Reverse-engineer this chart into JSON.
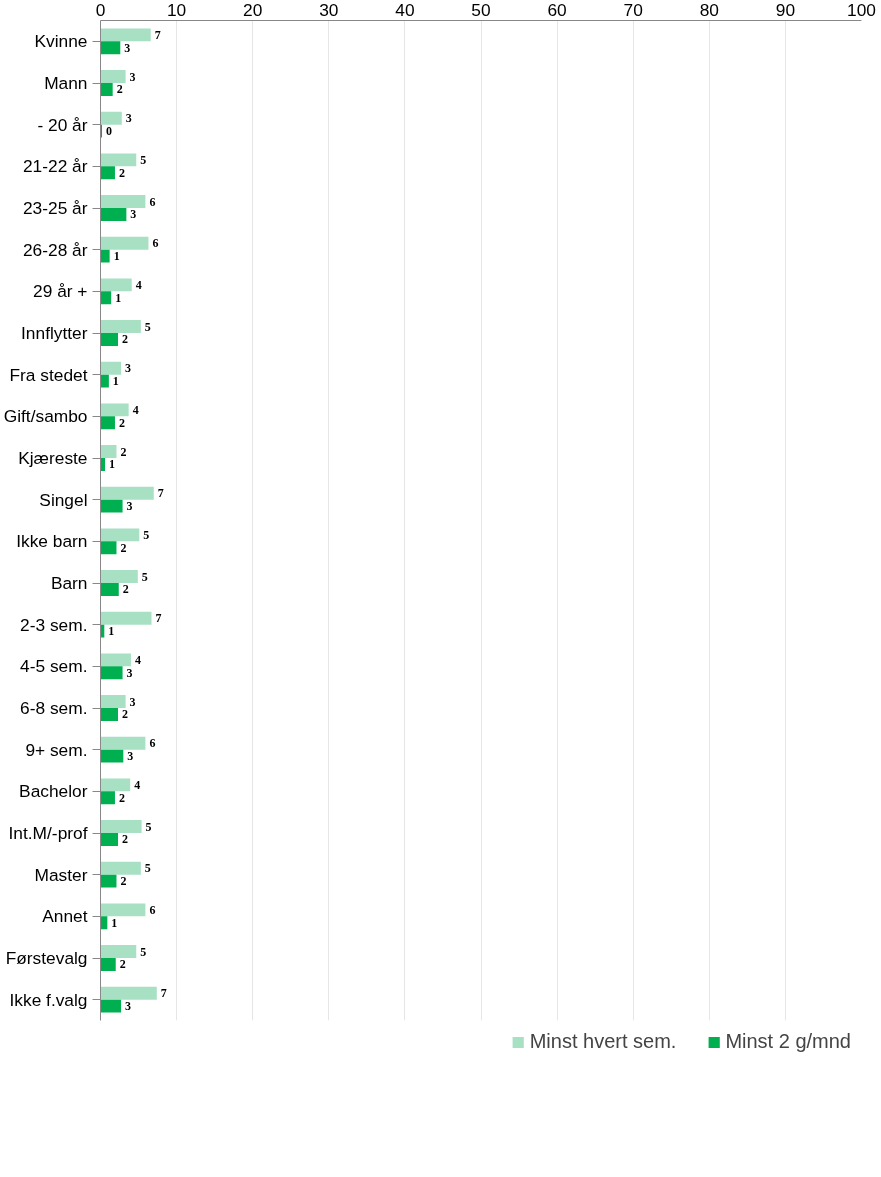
{
  "chart_data": {
    "type": "bar",
    "orientation": "horizontal",
    "categories": [
      "Kvinne",
      "Mann",
      "- 20 år",
      "21-22 år",
      "23-25 år",
      "26-28 år",
      "29 år +",
      "Innflytter",
      "Fra stedet",
      "Gift/sambo",
      "Kjæreste",
      "Singel",
      "Ikke barn",
      "Barn",
      "2-3 sem.",
      "4-5 sem.",
      "6-8 sem.",
      "9+ sem.",
      "Bachelor",
      "Int.M/-prof",
      "Master",
      "Annet",
      "Førstevalg",
      "Ikke f.valg"
    ],
    "series": [
      {
        "name": "Minst hvert sem.",
        "color": "#a8e0c4",
        "values": [
          6.6,
          3.3,
          2.8,
          4.7,
          5.9,
          6.3,
          4.1,
          5.3,
          2.7,
          3.7,
          2.1,
          7.0,
          5.1,
          4.9,
          6.7,
          4.0,
          3.3,
          5.9,
          3.9,
          5.4,
          5.3,
          5.9,
          4.7,
          7.4
        ],
        "value_labels": [
          "7",
          "3",
          "3",
          "5",
          "6",
          "6",
          "4",
          "5",
          "3",
          "4",
          "2",
          "7",
          "5",
          "5",
          "7",
          "4",
          "3",
          "6",
          "4",
          "5",
          "5",
          "6",
          "5",
          "7"
        ]
      },
      {
        "name": "Minst 2 g/mnd",
        "color": "#00b050",
        "values": [
          2.6,
          1.6,
          0.2,
          1.9,
          3.4,
          1.2,
          1.4,
          2.3,
          1.1,
          1.9,
          0.6,
          2.9,
          2.1,
          2.4,
          0.5,
          2.9,
          2.3,
          3.0,
          1.9,
          2.3,
          2.1,
          0.9,
          2.0,
          2.7
        ],
        "value_labels": [
          "3",
          "2",
          "0",
          "2",
          "3",
          "1",
          "1",
          "2",
          "1",
          "2",
          "1",
          "3",
          "2",
          "2",
          "1",
          "3",
          "2",
          "3",
          "2",
          "2",
          "2",
          "1",
          "2",
          "3"
        ]
      }
    ],
    "xlim": [
      0,
      100
    ],
    "xticks": [
      0,
      10,
      20,
      30,
      40,
      50,
      60,
      70,
      80,
      90,
      100
    ],
    "grid": "x",
    "legend": "bottom"
  }
}
